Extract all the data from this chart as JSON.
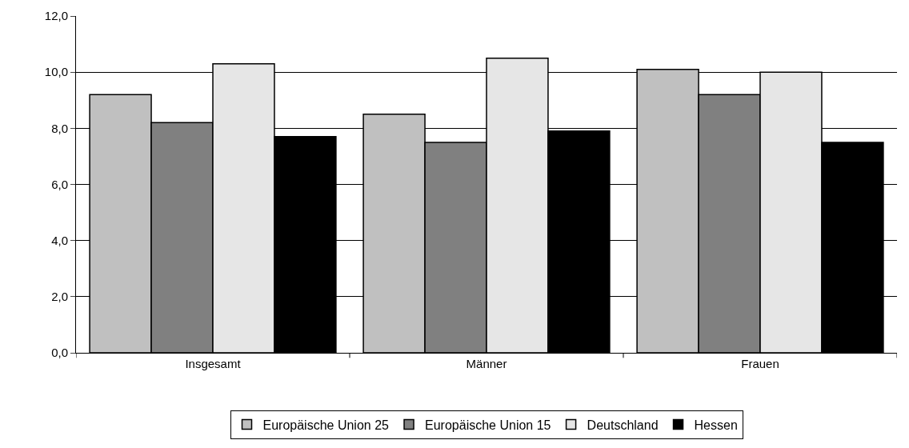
{
  "chart_data": {
    "type": "bar",
    "categories": [
      "Insgesamt",
      "Männer",
      "Frauen"
    ],
    "series": [
      {
        "name": "Europäische Union 25",
        "color": "#c0c0c0",
        "values": [
          9.2,
          8.5,
          10.1
        ]
      },
      {
        "name": "Europäische Union 15",
        "color": "#808080",
        "values": [
          8.2,
          7.5,
          9.2
        ]
      },
      {
        "name": "Deutschland",
        "color": "#e6e6e6",
        "values": [
          10.3,
          10.5,
          10.0
        ]
      },
      {
        "name": "Hessen",
        "color": "#000000",
        "values": [
          7.7,
          7.9,
          7.5
        ]
      }
    ],
    "ylim": [
      0,
      12
    ],
    "yticks": [
      {
        "value": 0,
        "label": "0,0"
      },
      {
        "value": 2,
        "label": "2,0"
      },
      {
        "value": 4,
        "label": "4,0"
      },
      {
        "value": 6,
        "label": "6,0"
      },
      {
        "value": 8,
        "label": "8,0"
      },
      {
        "value": 10,
        "label": "10,0"
      },
      {
        "value": 12,
        "label": "12,0"
      }
    ],
    "grid": "y",
    "legend": "bottom"
  }
}
